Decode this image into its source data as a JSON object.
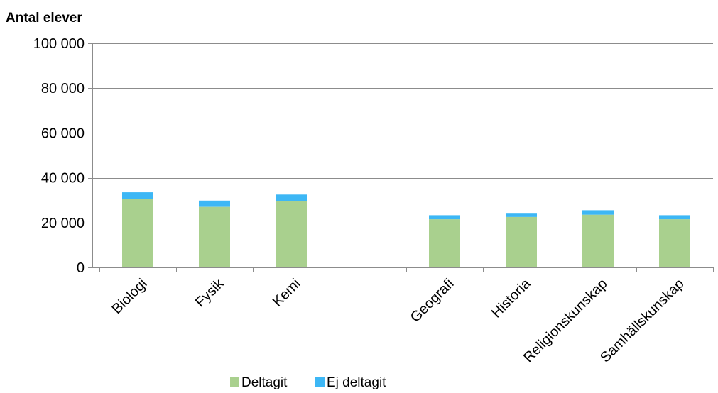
{
  "chart_data": {
    "type": "bar",
    "stacked": true,
    "ylabel": "Antal elever",
    "ylim": [
      0,
      100000
    ],
    "yticks": [
      0,
      20000,
      40000,
      60000,
      80000,
      100000
    ],
    "ytick_labels": [
      "0",
      "20 000",
      "40 000",
      "60 000",
      "80 000",
      "100 000"
    ],
    "categories": [
      "Biologi",
      "Fysik",
      "Kemi",
      "",
      "Geografi",
      "Historia",
      "Religionskunskap",
      "Samhällskunskap"
    ],
    "series": [
      {
        "name": "Deltagit",
        "color": "#a9d08e",
        "values": [
          30500,
          27000,
          29500,
          null,
          21500,
          22500,
          23500,
          21500
        ]
      },
      {
        "name": "Ej deltagit",
        "color": "#3db7f5",
        "values": [
          3000,
          2800,
          3000,
          null,
          1800,
          1800,
          2000,
          1800
        ]
      }
    ],
    "grid": true,
    "legend_position": "bottom"
  }
}
